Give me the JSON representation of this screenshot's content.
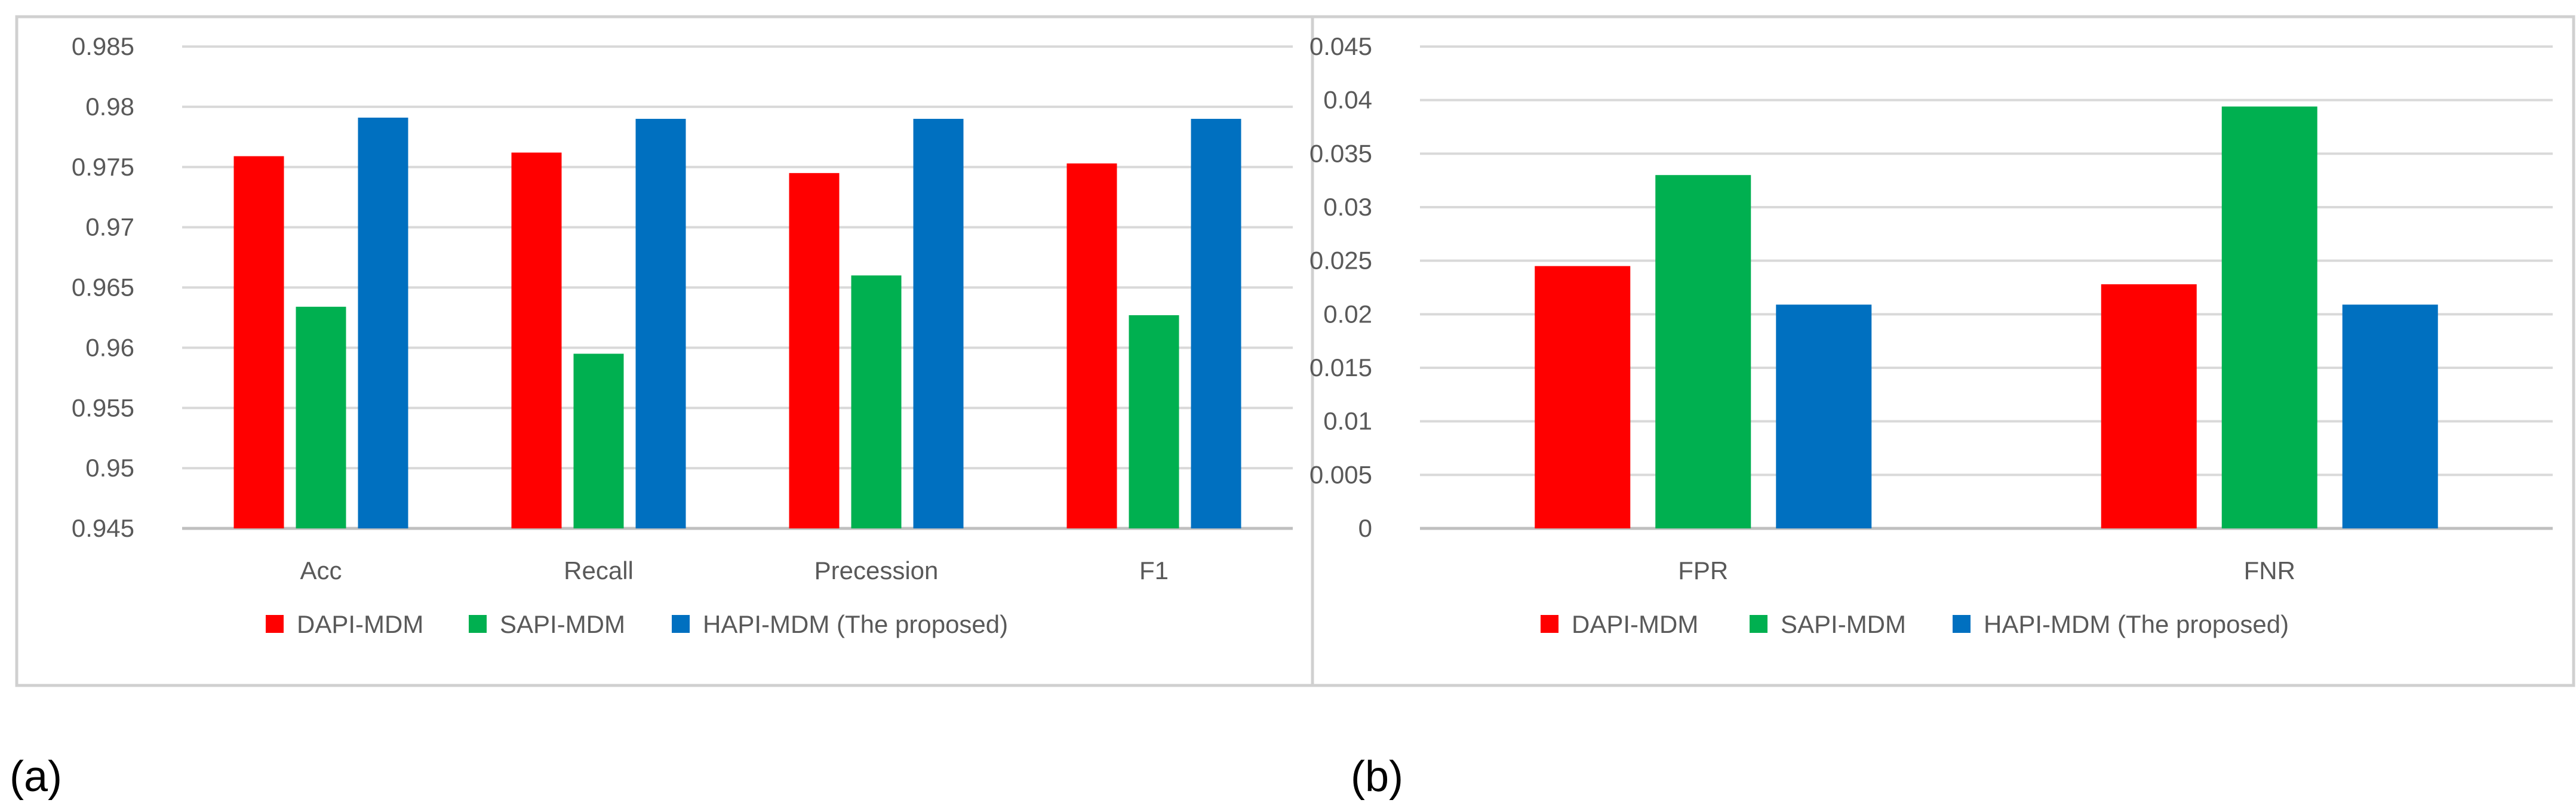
{
  "panels": [
    {
      "label": "(a)",
      "chart_data": {
        "type": "bar",
        "title": "",
        "xlabel": "",
        "ylabel": "",
        "categories": [
          "Acc",
          "Recall",
          "Precession",
          "F1"
        ],
        "series": [
          {
            "name": "DAPI-MDM",
            "values": [
              0.9759,
              0.9762,
              0.9745,
              0.9753
            ]
          },
          {
            "name": "SAPI-MDM",
            "values": [
              0.9634,
              0.9595,
              0.966,
              0.9627
            ]
          },
          {
            "name": "HAPI-MDM (The proposed)",
            "values": [
              0.9791,
              0.979,
              0.979,
              0.979
            ]
          }
        ],
        "ylim": [
          0.945,
          0.985
        ],
        "yticks": [
          "0.945",
          "0.95",
          "0.955",
          "0.96",
          "0.965",
          "0.97",
          "0.975",
          "0.98",
          "0.985"
        ],
        "grid": true,
        "legend": "bottom"
      }
    },
    {
      "label": "(b)",
      "chart_data": {
        "type": "bar",
        "title": "",
        "xlabel": "",
        "ylabel": "",
        "categories": [
          "FPR",
          "FNR"
        ],
        "series": [
          {
            "name": "DAPI-MDM",
            "values": [
              0.0245,
              0.0228
            ]
          },
          {
            "name": "SAPI-MDM",
            "values": [
              0.033,
              0.0394
            ]
          },
          {
            "name": "HAPI-MDM (The proposed)",
            "values": [
              0.0209,
              0.0209
            ]
          }
        ],
        "ylim": [
          0,
          0.045
        ],
        "yticks": [
          "0",
          "0.005",
          "0.01",
          "0.015",
          "0.02",
          "0.025",
          "0.03",
          "0.035",
          "0.04",
          "0.045"
        ],
        "grid": true,
        "legend": "bottom"
      }
    }
  ],
  "colors": {
    "series": [
      "#FF0000",
      "#00B050",
      "#0070C0"
    ],
    "grid": "#D9D9D9",
    "axis": "#BFBFBF",
    "text": "#595959",
    "frame": "#D0D0D0"
  }
}
